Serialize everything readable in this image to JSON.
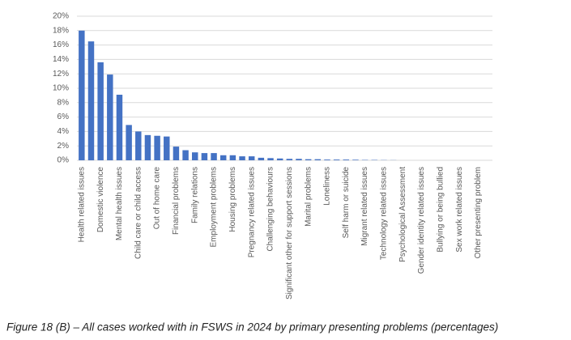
{
  "chart_data": {
    "type": "bar",
    "caption": "Figure 18 (B) – All cases worked with in FSWS in 2024 by primary presenting problems (percentages)",
    "categories": [
      "Health related issues",
      null,
      "Domestic violence",
      null,
      "Mental health issues",
      null,
      "Child care or child access",
      null,
      "Out of home care",
      null,
      "Financial problems",
      null,
      "Family relations",
      null,
      "Employment problems",
      null,
      "Housing problems",
      null,
      "Pregnancy related issues",
      null,
      "Challenging behaviours",
      null,
      "Significant other for support sessions",
      null,
      "Marital problems",
      null,
      "Loneliness",
      null,
      "Self harm or suicide",
      null,
      "Migrant related issues",
      null,
      "Technology related issues",
      null,
      "Psychological Assessment",
      null,
      "Gender identity related issues",
      null,
      "Bullying or being bullied",
      null,
      "Sex work related issues",
      null,
      "Other presenting problem",
      null
    ],
    "values": [
      18,
      16.5,
      13.6,
      11.9,
      9.1,
      4.9,
      4.0,
      3.5,
      3.4,
      3.3,
      1.9,
      1.4,
      1.1,
      1.0,
      1.0,
      0.7,
      0.7,
      0.55,
      0.55,
      0.35,
      0.3,
      0.25,
      0.2,
      0.2,
      0.15,
      0.15,
      0.1,
      0.1,
      0.1,
      0.08,
      0.05,
      0.05,
      0.03,
      0.02,
      0,
      0,
      0,
      0,
      0,
      0,
      0,
      0,
      0,
      0
    ],
    "color": "#4472c4",
    "ylim": [
      0,
      20
    ],
    "yticks": [
      {
        "value": 0,
        "label": "0%"
      },
      {
        "value": 2,
        "label": "2%"
      },
      {
        "value": 4,
        "label": "4%"
      },
      {
        "value": 6,
        "label": "6%"
      },
      {
        "value": 8,
        "label": "8%"
      },
      {
        "value": 10,
        "label": "10%"
      },
      {
        "value": 12,
        "label": "12%"
      },
      {
        "value": 14,
        "label": "14%"
      },
      {
        "value": 16,
        "label": "16%"
      },
      {
        "value": 18,
        "label": "18%"
      },
      {
        "value": 20,
        "label": "20%"
      }
    ],
    "grid": true
  }
}
